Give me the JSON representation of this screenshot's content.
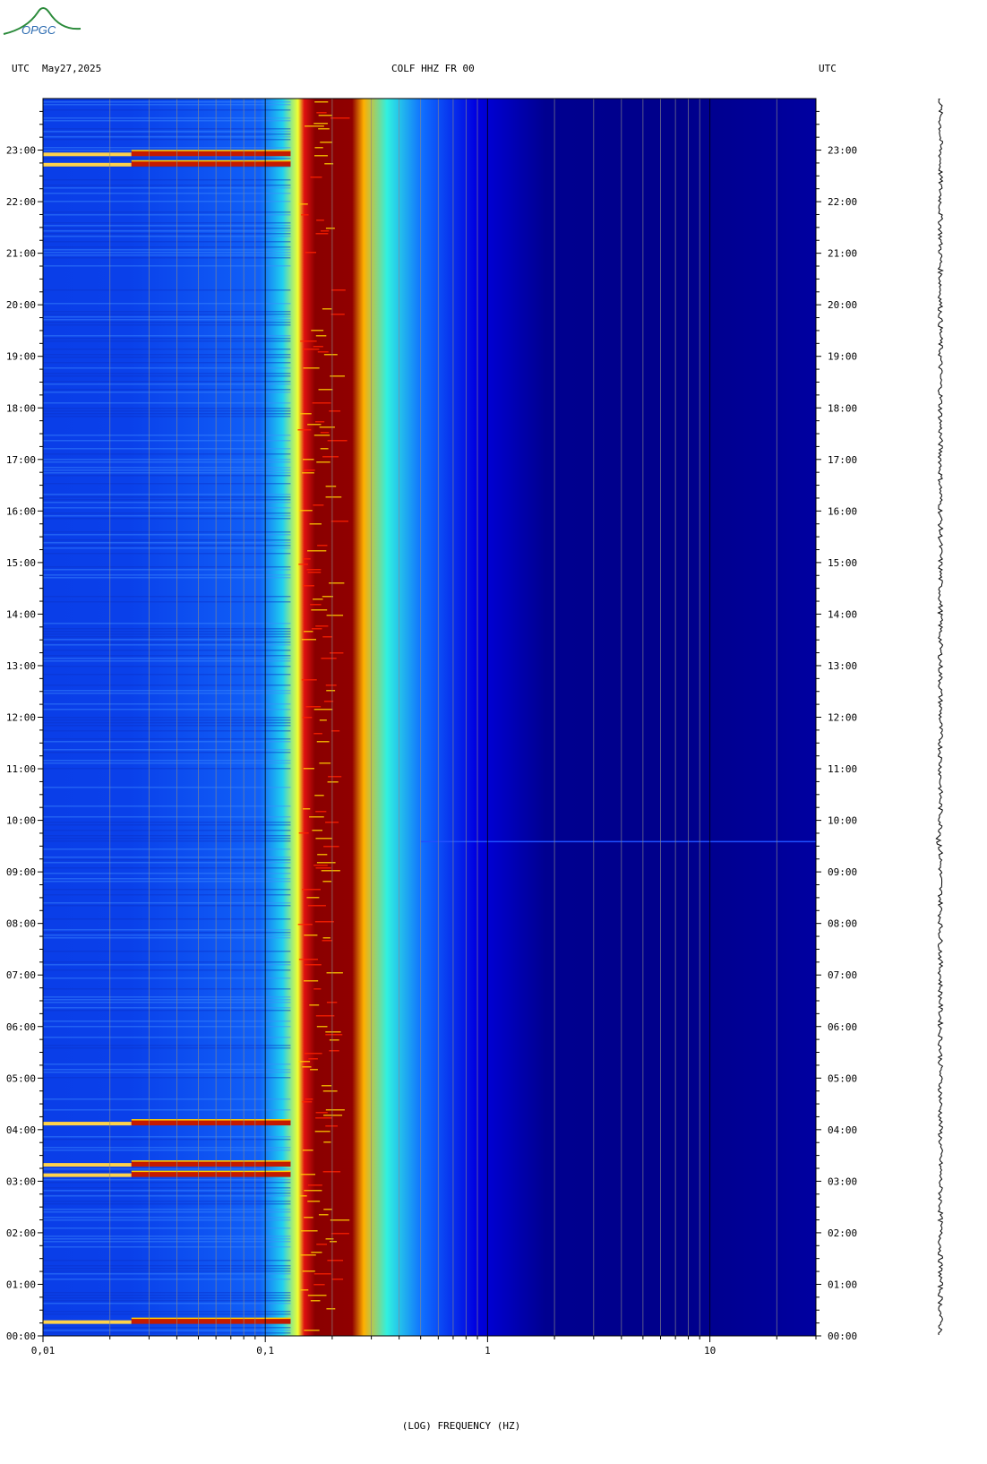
{
  "header": {
    "left_tz": "UTC",
    "date": "May27,2025",
    "station": "COLF HHZ FR 00",
    "right_tz": "UTC"
  },
  "logo": {
    "text": "OPGC",
    "icon": "volcano-logo-icon",
    "color": "#2a8a3a"
  },
  "chart_data": {
    "type": "heatmap",
    "title": "COLF HHZ FR 00",
    "xlabel": "(LOG) FREQUENCY (HZ)",
    "xscale": "log",
    "xlim": [
      0.01,
      30
    ],
    "x_ticks": [
      {
        "value": 0.01,
        "label": "0,01"
      },
      {
        "value": 0.1,
        "label": "0,1"
      },
      {
        "value": 1,
        "label": "1"
      },
      {
        "value": 10,
        "label": "10"
      }
    ],
    "y_ticks": [
      "00:00",
      "01:00",
      "02:00",
      "03:00",
      "04:00",
      "05:00",
      "06:00",
      "07:00",
      "08:00",
      "09:00",
      "10:00",
      "11:00",
      "12:00",
      "13:00",
      "14:00",
      "15:00",
      "16:00",
      "17:00",
      "18:00",
      "19:00",
      "20:00",
      "21:00",
      "22:00",
      "23:00"
    ],
    "ylim_hours": [
      0,
      24
    ],
    "colormap": [
      "#000080",
      "#0000ff",
      "#00ffff",
      "#ffff00",
      "#ff0000",
      "#800000"
    ],
    "energy_peak_band_hz": [
      0.15,
      0.22
    ],
    "events_hours": [
      0.25,
      3.1,
      3.3,
      4.1,
      22.7,
      22.9
    ],
    "glitch_hour": 9.6
  }
}
